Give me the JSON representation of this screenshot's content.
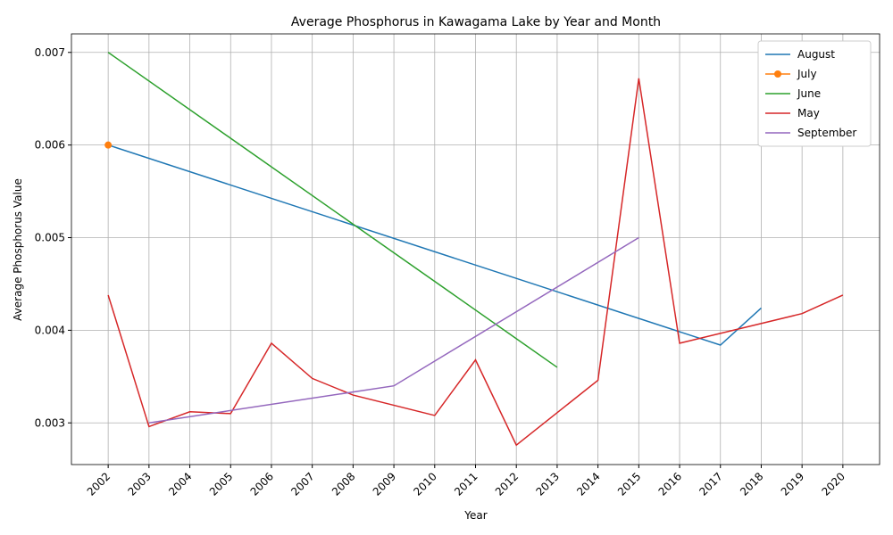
{
  "chart_data": {
    "type": "line",
    "title": "Average Phosphorus in Kawagama Lake by Year and Month",
    "x_label": "Year",
    "y_label": "Average Phosphorus Value",
    "series": [
      {
        "name": "August",
        "color": "#1f77b4",
        "x": [
          2002,
          2017,
          2018
        ],
        "values": [
          0.006,
          0.00384,
          0.00424
        ]
      },
      {
        "name": "July",
        "color": "#ff7f0e",
        "marker": "o",
        "x": [
          2002
        ],
        "values": [
          0.006
        ]
      },
      {
        "name": "June",
        "color": "#2ca02c",
        "x": [
          2002,
          2013
        ],
        "values": [
          0.007,
          0.0036
        ]
      },
      {
        "name": "May",
        "color": "#d62728",
        "x": [
          2002,
          2003,
          2004,
          2005,
          2006,
          2007,
          2008,
          2010,
          2011,
          2012,
          2014,
          2015,
          2016,
          2019,
          2020
        ],
        "values": [
          0.00438,
          0.00296,
          0.00312,
          0.0031,
          0.00386,
          0.00348,
          0.0033,
          0.00308,
          0.00368,
          0.00276,
          0.00346,
          0.00672,
          0.00386,
          0.00418,
          0.00438
        ]
      },
      {
        "name": "September",
        "color": "#9467bd",
        "x": [
          2003,
          2009,
          2015
        ],
        "values": [
          0.003,
          0.0034,
          0.005
        ]
      }
    ],
    "xlim": [
      2001.1,
      2020.9
    ],
    "xticks": [
      2002,
      2003,
      2004,
      2005,
      2006,
      2007,
      2008,
      2009,
      2010,
      2011,
      2012,
      2013,
      2014,
      2015,
      2016,
      2017,
      2018,
      2019,
      2020
    ],
    "ylim": [
      0.00255,
      0.0072
    ],
    "yticks": [
      0.003,
      0.004,
      0.005,
      0.006,
      0.007
    ],
    "grid": true,
    "legend": "upper right"
  }
}
